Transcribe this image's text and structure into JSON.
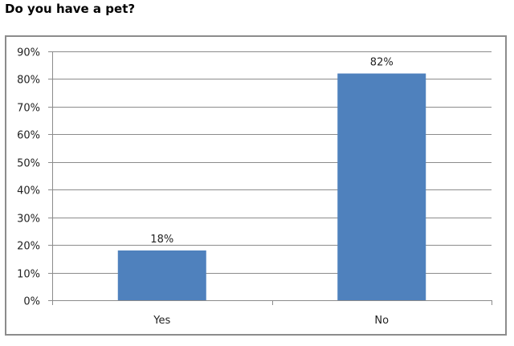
{
  "title": "Do you have a pet?",
  "colors": {
    "bar": "#4f81bd",
    "grid": "#8c8c8c",
    "frame": "#8c8c8c"
  },
  "chart_data": {
    "type": "bar",
    "title": "Do you have a pet?",
    "categories": [
      "Yes",
      "No"
    ],
    "values": [
      18,
      82
    ],
    "data_labels": [
      "18%",
      "82%"
    ],
    "xlabel": "",
    "ylabel": "",
    "ylim": [
      0,
      90
    ],
    "yticks": [
      "0%",
      "10%",
      "20%",
      "30%",
      "40%",
      "50%",
      "60%",
      "70%",
      "80%",
      "90%"
    ],
    "grid": true,
    "legend": "none"
  }
}
